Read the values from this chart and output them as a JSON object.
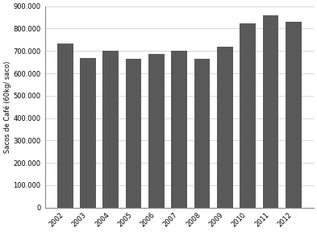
{
  "years": [
    2002,
    2003,
    2004,
    2005,
    2006,
    2007,
    2008,
    2009,
    2010,
    2011,
    2012
  ],
  "values": [
    735000,
    670000,
    700000,
    665000,
    685000,
    700000,
    665000,
    720000,
    825000,
    860000,
    830000
  ],
  "bar_color": "#595959",
  "ylabel": "Sacos de Café (60kg/ saco)",
  "ylim": [
    0,
    900000
  ],
  "ytick_step": 100000,
  "background_color": "#ffffff",
  "grid_color": "#c8c8c8",
  "bar_width": 0.7,
  "tick_fontsize": 6,
  "ylabel_fontsize": 6
}
